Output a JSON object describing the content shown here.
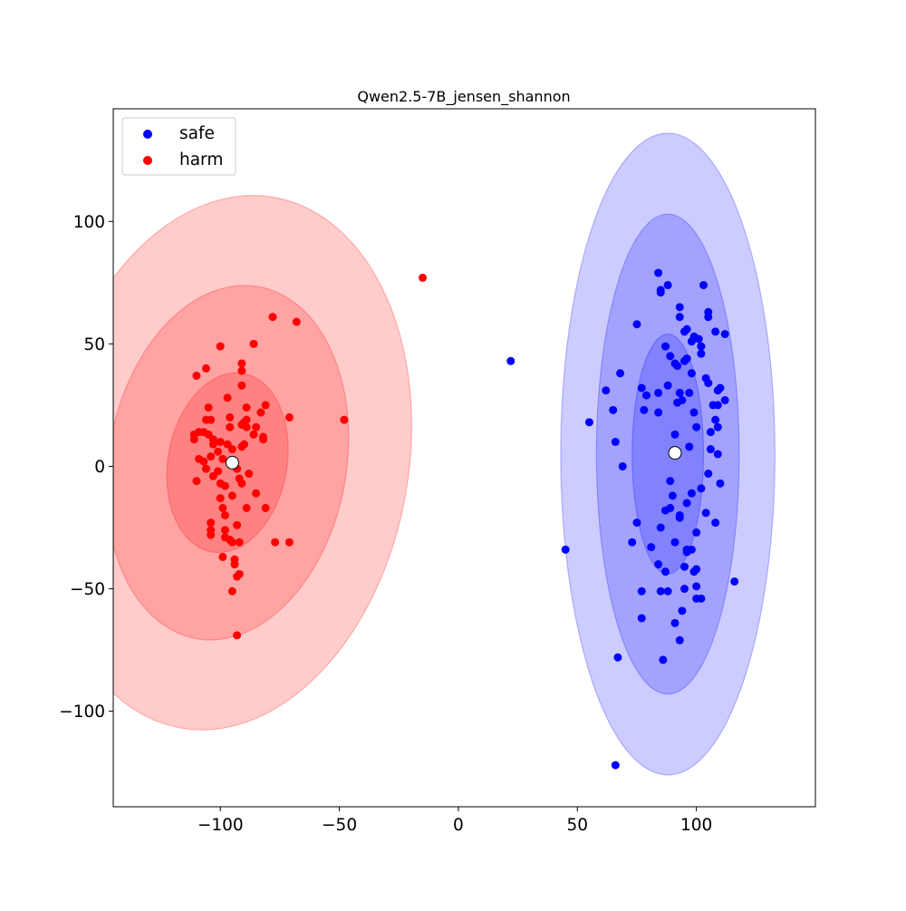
{
  "chart_data": {
    "type": "scatter",
    "title": "Qwen2.5-7B_jensen_shannon",
    "xlabel": "",
    "ylabel": "",
    "xlim": [
      -145,
      150
    ],
    "ylim": [
      -139,
      146
    ],
    "xticks": [
      -100,
      -50,
      0,
      50,
      100
    ],
    "yticks": [
      -100,
      -50,
      0,
      50,
      100
    ],
    "xtick_labels": [
      "−100",
      "−50",
      "0",
      "50",
      "100"
    ],
    "ytick_labels": [
      "−100",
      "−50",
      "0",
      "50",
      "100"
    ],
    "grid": false,
    "legend_position": "top-left",
    "series": [
      {
        "name": "safe",
        "color": "#0000ff",
        "centroid": [
          91,
          5.5
        ],
        "ellipse_centre": [
          88,
          5
        ],
        "ellipse_semi_axes": [
          [
            15,
            49
          ],
          [
            30,
            98
          ],
          [
            45,
            131
          ]
        ],
        "points": [
          [
            84,
            79
          ],
          [
            85,
            72
          ],
          [
            88,
            74
          ],
          [
            103,
            74
          ],
          [
            85,
            71
          ],
          [
            93,
            65
          ],
          [
            105,
            63
          ],
          [
            105,
            61
          ],
          [
            93,
            61
          ],
          [
            108,
            55
          ],
          [
            112,
            54
          ],
          [
            96,
            56
          ],
          [
            95,
            55
          ],
          [
            99,
            53
          ],
          [
            101,
            52
          ],
          [
            98,
            51
          ],
          [
            87,
            49
          ],
          [
            102,
            49
          ],
          [
            102,
            46
          ],
          [
            89,
            45
          ],
          [
            96,
            44
          ],
          [
            95,
            43
          ],
          [
            91,
            42
          ],
          [
            92,
            41
          ],
          [
            98,
            38
          ],
          [
            104,
            36
          ],
          [
            105,
            34
          ],
          [
            110,
            32
          ],
          [
            112,
            27
          ],
          [
            109,
            31
          ],
          [
            68,
            38
          ],
          [
            84,
            30
          ],
          [
            88,
            33
          ],
          [
            93,
            30
          ],
          [
            97,
            30
          ],
          [
            94,
            27
          ],
          [
            92,
            26
          ],
          [
            107,
            25
          ],
          [
            109,
            25
          ],
          [
            99,
            22
          ],
          [
            84,
            22
          ],
          [
            79,
            29
          ],
          [
            62,
            31
          ],
          [
            77,
            32
          ],
          [
            75,
            58
          ],
          [
            55,
            18
          ],
          [
            65,
            23
          ],
          [
            78,
            23
          ],
          [
            108,
            19
          ],
          [
            109,
            16
          ],
          [
            100,
            16
          ],
          [
            106,
            14
          ],
          [
            91,
            13
          ],
          [
            97,
            8
          ],
          [
            106,
            7
          ],
          [
            109,
            5
          ],
          [
            66,
            10
          ],
          [
            69,
            0
          ],
          [
            105,
            -3
          ],
          [
            110,
            -7
          ],
          [
            102,
            -9
          ],
          [
            89,
            -6
          ],
          [
            90,
            -12
          ],
          [
            98,
            -11
          ],
          [
            87,
            -18
          ],
          [
            89,
            -17
          ],
          [
            93,
            -21
          ],
          [
            93,
            -20
          ],
          [
            85,
            -25
          ],
          [
            96,
            -15
          ],
          [
            104,
            -19
          ],
          [
            108,
            -23
          ],
          [
            75,
            -23
          ],
          [
            73,
            -31
          ],
          [
            81,
            -33
          ],
          [
            91,
            -31
          ],
          [
            100,
            -27
          ],
          [
            96,
            -34
          ],
          [
            96,
            -35
          ],
          [
            98,
            -34
          ],
          [
            95,
            -41
          ],
          [
            84,
            -40
          ],
          [
            87,
            -43
          ],
          [
            99,
            -43
          ],
          [
            100,
            -42
          ],
          [
            116,
            -47
          ],
          [
            77,
            -51
          ],
          [
            85,
            -51
          ],
          [
            88,
            -51
          ],
          [
            95,
            -50
          ],
          [
            100,
            -49
          ],
          [
            102,
            -54
          ],
          [
            100,
            -54
          ],
          [
            94,
            -59
          ],
          [
            77,
            -62
          ],
          [
            91,
            -64
          ],
          [
            93,
            -71
          ],
          [
            67,
            -78
          ],
          [
            86,
            -79
          ],
          [
            45,
            -34
          ],
          [
            22,
            43
          ],
          [
            66,
            -122
          ]
        ]
      },
      {
        "name": "harm",
        "color": "#ff0000",
        "centroid": [
          -95,
          1.5
        ],
        "ellipse_centre": [
          -97,
          1.5
        ],
        "ellipse_semi_axes": [
          [
            25,
            37
          ],
          [
            50,
            73
          ],
          [
            76,
            110
          ]
        ],
        "ellipse_tilt_deg": 10,
        "points": [
          [
            -15,
            77
          ],
          [
            -48,
            19
          ],
          [
            -78,
            61
          ],
          [
            -68,
            59
          ],
          [
            -86,
            50
          ],
          [
            -100,
            49
          ],
          [
            -110,
            37
          ],
          [
            -106,
            40
          ],
          [
            -91,
            42
          ],
          [
            -91,
            39
          ],
          [
            -91,
            33
          ],
          [
            -97,
            28
          ],
          [
            -81,
            25
          ],
          [
            -83,
            22
          ],
          [
            -89,
            24
          ],
          [
            -96,
            20
          ],
          [
            -105,
            24
          ],
          [
            -89,
            19
          ],
          [
            -91,
            17
          ],
          [
            -90,
            18
          ],
          [
            -89,
            16
          ],
          [
            -85,
            16
          ],
          [
            -96,
            16
          ],
          [
            -106,
            19
          ],
          [
            -104,
            19
          ],
          [
            -109,
            14
          ],
          [
            -111,
            13
          ],
          [
            -111,
            11
          ],
          [
            -105,
            13
          ],
          [
            -107,
            14
          ],
          [
            -103,
            11
          ],
          [
            -100,
            10
          ],
          [
            -101,
            6
          ],
          [
            -97,
            9
          ],
          [
            -103,
            9
          ],
          [
            -86,
            13
          ],
          [
            -82,
            12
          ],
          [
            -82,
            11
          ],
          [
            -90,
            9
          ],
          [
            -91,
            8
          ],
          [
            -95,
            7
          ],
          [
            -99,
            3
          ],
          [
            -104,
            4
          ],
          [
            -107,
            2
          ],
          [
            -109,
            3
          ],
          [
            -93,
            -1
          ],
          [
            -92,
            -5
          ],
          [
            -106,
            -1
          ],
          [
            -103,
            -4
          ],
          [
            -100,
            -7
          ],
          [
            -110,
            -6
          ],
          [
            -101,
            -2
          ],
          [
            -88,
            -3
          ],
          [
            -91,
            -7
          ],
          [
            -85,
            -11
          ],
          [
            -98,
            -8
          ],
          [
            -100,
            -13
          ],
          [
            -95,
            -12
          ],
          [
            -89,
            -17
          ],
          [
            -81,
            -17
          ],
          [
            -93,
            -24
          ],
          [
            -99,
            -17
          ],
          [
            -98,
            -20
          ],
          [
            -98,
            -26
          ],
          [
            -104,
            -23
          ],
          [
            -104,
            -26
          ],
          [
            -104,
            -28
          ],
          [
            -98,
            -29
          ],
          [
            -96,
            -30
          ],
          [
            -95,
            -31
          ],
          [
            -92,
            -31
          ],
          [
            -77,
            -31
          ],
          [
            -71,
            -31
          ],
          [
            -71,
            20
          ],
          [
            -99,
            -37
          ],
          [
            -94,
            -38
          ],
          [
            -94,
            -40
          ],
          [
            -93,
            -45
          ],
          [
            -92,
            -44
          ],
          [
            -95,
            -51
          ],
          [
            -93,
            -69
          ]
        ]
      }
    ]
  }
}
